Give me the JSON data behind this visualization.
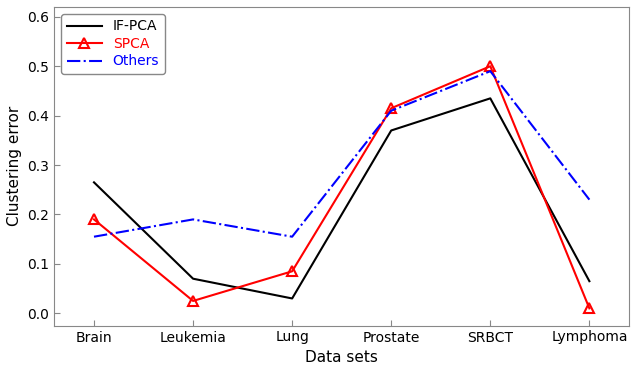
{
  "categories": [
    "Brain",
    "Leukemia",
    "Lung",
    "Prostate",
    "SRBCT",
    "Lymphoma"
  ],
  "IF_PCA": [
    0.265,
    0.07,
    0.03,
    0.37,
    0.435,
    0.065
  ],
  "SPCA": [
    0.19,
    0.025,
    0.085,
    0.415,
    0.5,
    0.01
  ],
  "Others": [
    0.155,
    0.19,
    0.155,
    0.41,
    0.49,
    0.23
  ],
  "IF_PCA_color": "#000000",
  "SPCA_color": "#ff0000",
  "Others_color": "#0000ff",
  "xlabel": "Data sets",
  "ylabel": "Clustering error",
  "ylim": [
    -0.025,
    0.62
  ],
  "yticks": [
    0.0,
    0.1,
    0.2,
    0.3,
    0.4,
    0.5,
    0.6
  ],
  "background_color": "#ffffff",
  "legend_labels": [
    "IF-PCA",
    "SPCA",
    "Others"
  ],
  "title": ""
}
